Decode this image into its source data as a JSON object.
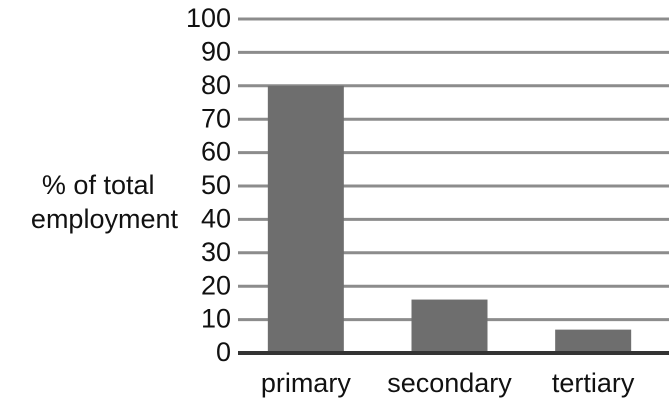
{
  "chart_data": {
    "type": "bar",
    "categories": [
      "primary",
      "secondary",
      "tertiary"
    ],
    "values": [
      80,
      16,
      7
    ],
    "ylabel_lines": [
      "% of total",
      "employment"
    ],
    "xlabel": "",
    "ylim": [
      0,
      100
    ],
    "yticks": [
      0,
      10,
      20,
      30,
      40,
      50,
      60,
      70,
      80,
      90,
      100
    ],
    "grid": true,
    "bar_color": "#6e6e6e",
    "grid_color": "#8c8c8c"
  }
}
